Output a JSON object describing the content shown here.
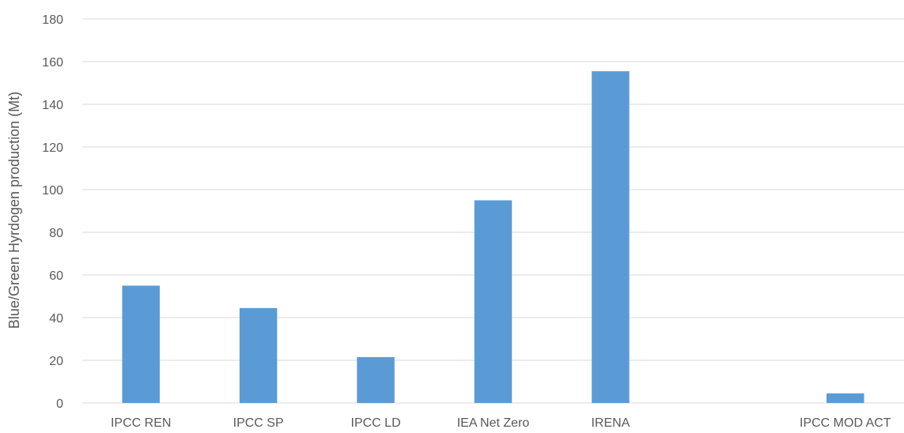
{
  "chart_data": {
    "type": "bar",
    "title": "",
    "xlabel": "",
    "ylabel": "Blue/Green Hyrdogen production (Mt)",
    "categories": [
      "IPCC REN",
      "IPCC SP",
      "IPCC LD",
      "IEA Net Zero",
      "IRENA",
      "",
      "IPCC MOD ACT"
    ],
    "values": [
      55,
      44.5,
      21.5,
      95,
      155.5,
      null,
      4.5
    ],
    "ylim": [
      0,
      180
    ],
    "yticks": [
      0,
      20,
      40,
      60,
      80,
      100,
      120,
      140,
      160,
      180
    ],
    "grid": true,
    "legend": "none",
    "bar_color": "#5b9bd5"
  }
}
